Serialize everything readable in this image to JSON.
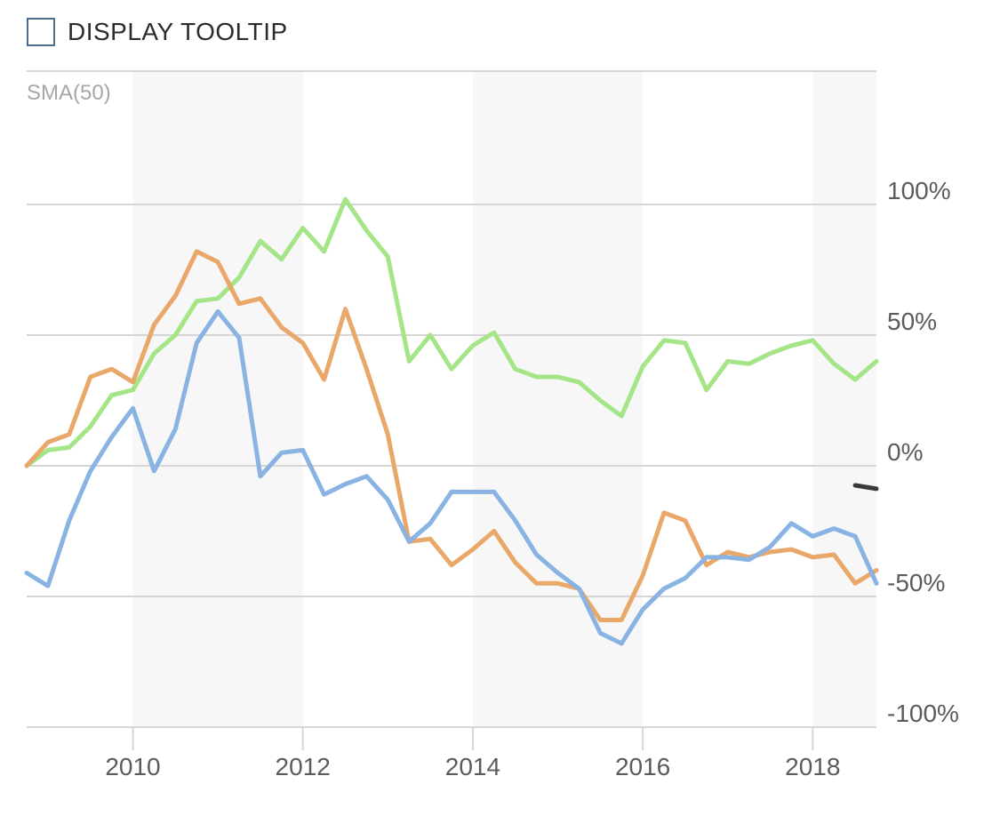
{
  "toolbar": {
    "tooltip_label": "DISPLAY TOOLTIP",
    "tooltip_checked": false
  },
  "chart_data": {
    "type": "line",
    "indicator_label": "SMA(50)",
    "y_unit": "%",
    "ylim": [
      -100,
      100
    ],
    "xlim": [
      2008.75,
      2018.75
    ],
    "y_ticks": [
      100,
      50,
      0,
      -50,
      -100
    ],
    "y_tick_labels": [
      "100%",
      "50%",
      "0%",
      "-50%",
      "-100%"
    ],
    "x_ticks": [
      2010,
      2012,
      2014,
      2016,
      2018
    ],
    "x_tick_labels": [
      "2010",
      "2012",
      "2014",
      "2016",
      "2018"
    ],
    "shaded_bands": [
      [
        2010,
        2012
      ],
      [
        2014,
        2016
      ],
      [
        2018,
        2018.75
      ]
    ],
    "grid": true,
    "colors": {
      "green": "#a3e587",
      "orange": "#e9a76a",
      "blue": "#88b3e2",
      "marker": "#3a3a3a",
      "band": "#f7f7f7",
      "grid": "#d6d6d6"
    },
    "series": [
      {
        "color": "#a3e587",
        "x": [
          2008.75,
          2009.0,
          2009.25,
          2009.5,
          2009.75,
          2010.0,
          2010.25,
          2010.5,
          2010.75,
          2011.0,
          2011.25,
          2011.5,
          2011.75,
          2012.0,
          2012.25,
          2012.5,
          2012.75,
          2013.0,
          2013.25,
          2013.5,
          2013.75,
          2014.0,
          2014.25,
          2014.5,
          2014.75,
          2015.0,
          2015.25,
          2015.5,
          2015.75,
          2016.0,
          2016.25,
          2016.5,
          2016.75,
          2017.0,
          2017.25,
          2017.5,
          2017.75,
          2018.0,
          2018.25,
          2018.5,
          2018.75
        ],
        "y": [
          0,
          6,
          7,
          15,
          27,
          29,
          43,
          50,
          63,
          64,
          72,
          86,
          79,
          91,
          82,
          102,
          90,
          80,
          40,
          50,
          37,
          46,
          51,
          37,
          34,
          34,
          32,
          25,
          19,
          38,
          48,
          47,
          29,
          40,
          39,
          43,
          46,
          48,
          39,
          33,
          40
        ]
      },
      {
        "color": "#e9a76a",
        "x": [
          2008.75,
          2009.0,
          2009.25,
          2009.5,
          2009.75,
          2010.0,
          2010.25,
          2010.5,
          2010.75,
          2011.0,
          2011.25,
          2011.5,
          2011.75,
          2012.0,
          2012.25,
          2012.5,
          2012.75,
          2013.0,
          2013.25,
          2013.5,
          2013.75,
          2014.0,
          2014.25,
          2014.5,
          2014.75,
          2015.0,
          2015.25,
          2015.5,
          2015.75,
          2016.0,
          2016.25,
          2016.5,
          2016.75,
          2017.0,
          2017.25,
          2017.5,
          2017.75,
          2018.0,
          2018.25,
          2018.5,
          2018.75
        ],
        "y": [
          0,
          9,
          12,
          34,
          37,
          32,
          54,
          65,
          82,
          78,
          62,
          64,
          53,
          47,
          33,
          60,
          37,
          12,
          -29,
          -28,
          -38,
          -32,
          -25,
          -37,
          -45,
          -45,
          -47,
          -59,
          -59,
          -42,
          -18,
          -21,
          -38,
          -33,
          -35,
          -33,
          -32,
          -35,
          -34,
          -45,
          -40
        ]
      },
      {
        "color": "#88b3e2",
        "x": [
          2008.75,
          2009.0,
          2009.25,
          2009.5,
          2009.75,
          2010.0,
          2010.25,
          2010.5,
          2010.75,
          2011.0,
          2011.25,
          2011.5,
          2011.75,
          2012.0,
          2012.25,
          2012.5,
          2012.75,
          2013.0,
          2013.25,
          2013.5,
          2013.75,
          2014.0,
          2014.25,
          2014.5,
          2014.75,
          2015.0,
          2015.25,
          2015.5,
          2015.75,
          2016.0,
          2016.25,
          2016.5,
          2016.75,
          2017.0,
          2017.25,
          2017.5,
          2017.75,
          2018.0,
          2018.25,
          2018.5,
          2018.75
        ],
        "y": [
          -41,
          -46,
          -21,
          -2,
          11,
          22,
          -2,
          14,
          47,
          59,
          49,
          -4,
          5,
          6,
          -11,
          -7,
          -4,
          -13,
          -29,
          -22,
          -10,
          -10,
          -10,
          -21,
          -34,
          -41,
          -47,
          -64,
          -68,
          -55,
          -47,
          -43,
          -35,
          -35,
          -36,
          -31,
          -22,
          -27,
          -24,
          -27,
          -45
        ]
      },
      {
        "color": "#3a3a3a",
        "x": [
          2018.5,
          2018.75
        ],
        "y": [
          -7.5,
          -8.8
        ]
      }
    ]
  }
}
